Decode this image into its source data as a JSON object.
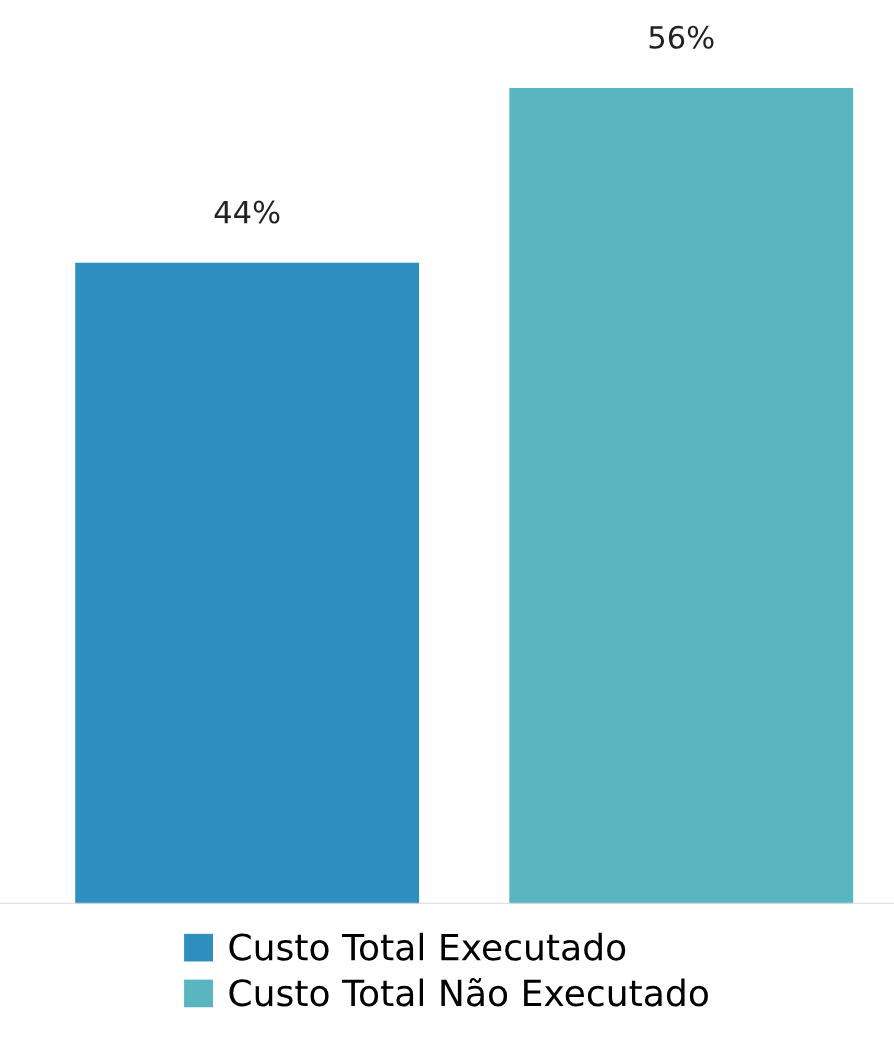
{
  "chart_data": {
    "type": "bar",
    "categories": [
      null
    ],
    "legend": "bottom",
    "series": [
      {
        "name": "Custo Total Executado",
        "color": "#2e8fbf",
        "values": [
          44
        ],
        "value_labels": [
          "44%"
        ]
      },
      {
        "name": "Custo Total Não Executado",
        "color": "#59b6c0",
        "values": [
          56
        ],
        "value_labels": [
          "56%"
        ]
      }
    ]
  }
}
